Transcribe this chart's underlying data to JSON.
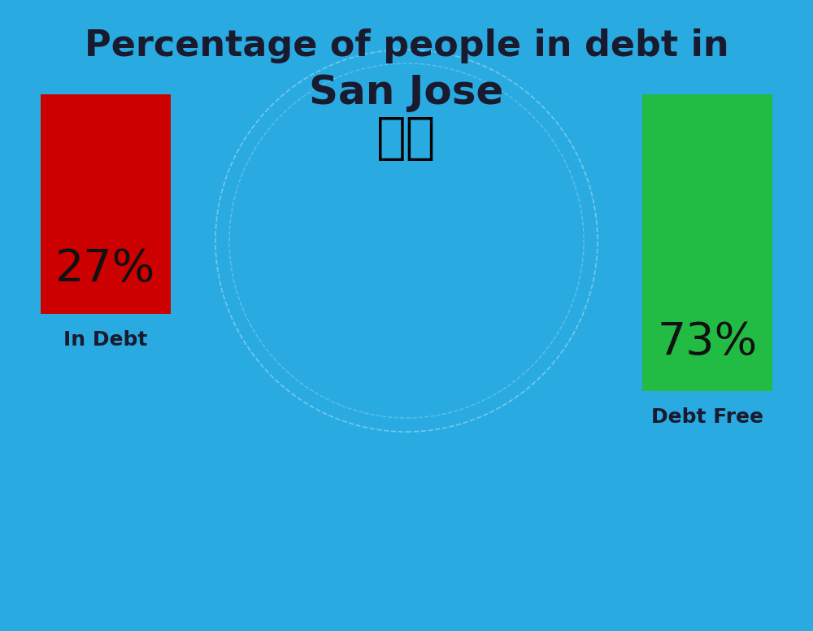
{
  "title_line1": "Percentage of people in debt in",
  "title_line2": "San Jose",
  "background_color": "#29ABE2",
  "bar_in_debt_label": "In Debt",
  "bar_debt_free_label": "Debt Free",
  "bar_in_debt_color": "#CC0000",
  "bar_debt_free_color": "#22BB44",
  "bar_in_debt_pct": "27%",
  "bar_debt_free_pct": "73%",
  "title_fontsize": 32,
  "subtitle_fontsize": 36,
  "bar_pct_fontsize": 40,
  "bar_label_fontsize": 18,
  "title_color": "#1a1a2e",
  "label_color": "#1a1a2e",
  "flag_emoji": "🇺🇸"
}
